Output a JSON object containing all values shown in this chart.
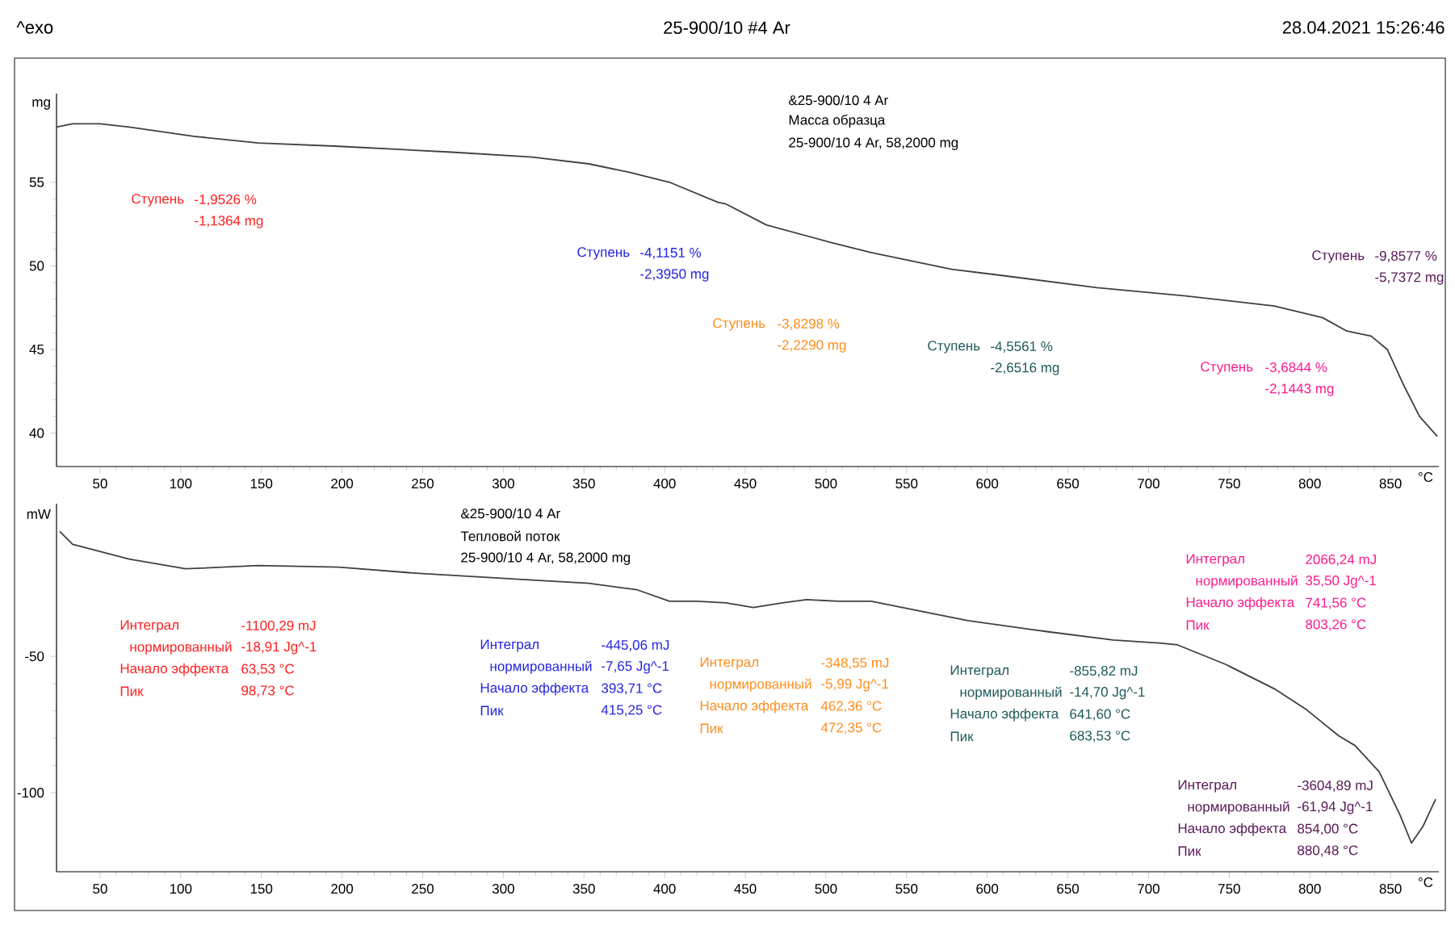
{
  "chart_data": [
    {
      "type": "line",
      "title": "25-900/10 #4 Ar",
      "xlabel": "°C",
      "ylabel": "mg",
      "x": [
        23,
        33,
        50,
        68,
        108,
        148,
        198,
        268,
        318,
        353,
        378,
        403,
        433,
        438,
        463,
        503,
        528,
        578,
        603,
        668,
        723,
        778,
        808,
        823,
        838,
        848,
        858,
        868,
        879
      ],
      "series": [
        {
          "color": "#404040",
          "values": [
            58.3,
            58.5,
            58.5,
            58.3,
            57.75,
            57.35,
            57.15,
            56.8,
            56.5,
            56.1,
            55.6,
            55.0,
            53.8,
            53.7,
            52.45,
            51.4,
            50.8,
            49.8,
            49.5,
            48.7,
            48.2,
            47.6,
            46.9,
            46.1,
            45.8,
            45.0,
            42.9,
            41.0,
            39.8
          ]
        }
      ],
      "xlim": [
        23,
        880
      ],
      "ylim": [
        38,
        60.3
      ],
      "xticks": [
        50,
        100,
        150,
        200,
        250,
        300,
        350,
        400,
        450,
        500,
        550,
        600,
        650,
        700,
        750,
        800,
        850
      ],
      "yticks": [
        40,
        45,
        50,
        55
      ],
      "annotations": [
        "^exo",
        "28.04.2021 15:26:46",
        "&25-900/10   4 Ar",
        "Масса образца",
        "25-900/10     4 Ar, 58,2000 mg",
        "Ступень",
        "-1,9526 %",
        "-1,1364 mg",
        "Ступень",
        "-4,1151 %",
        "-2,3950 mg",
        "Ступень",
        "-3,8298 %",
        "-2,2290 mg",
        "Ступень",
        "-4,5561 %",
        "-2,6516 mg",
        "Ступень",
        "-3,6844 %",
        "-2,1443 mg",
        "Ступень",
        "-9,8577 %",
        "-5,7372 mg"
      ]
    },
    {
      "type": "line",
      "xlabel": "°C",
      "ylabel": "mW",
      "x": [
        25,
        33,
        68,
        103,
        148,
        198,
        248,
        318,
        353,
        383,
        403,
        420,
        438,
        455,
        473,
        488,
        508,
        528,
        588,
        638,
        678,
        708,
        718,
        748,
        778,
        798,
        818,
        828,
        843,
        856,
        863,
        870,
        878
      ],
      "series": [
        {
          "color": "#404040",
          "values": [
            -4.2,
            -8.9,
            -14.3,
            -17.9,
            -16.7,
            -17.3,
            -19.6,
            -22,
            -23.2,
            -25.6,
            -29.8,
            -29.8,
            -30.4,
            -32.1,
            -30.4,
            -29.2,
            -29.8,
            -29.8,
            -36.9,
            -41,
            -44,
            -45.2,
            -45.8,
            -53,
            -61.9,
            -69.6,
            -79.2,
            -82.7,
            -92.3,
            -108.3,
            -118.5,
            -112.5,
            -102.4
          ]
        }
      ],
      "xlim": [
        23,
        880
      ],
      "ylim": [
        -129,
        6
      ],
      "xticks": [
        50,
        100,
        150,
        200,
        250,
        300,
        350,
        400,
        450,
        500,
        550,
        600,
        650,
        700,
        750,
        800,
        850
      ],
      "yticks": [
        -100,
        -50
      ],
      "annotations": [
        "&25-900/10   4 Ar",
        "Тепловой поток",
        "25-900/10     4 Ar, 58,2000 mg",
        "Интеграл",
        "-1100,29 mJ",
        "нормированный",
        "-18,91 Jg^-1",
        "Начало эффекта",
        "63,53 °C",
        "Пик",
        "98,73 °C",
        "Интеграл",
        "-445,06 mJ",
        "нормированный",
        "-7,65 Jg^-1",
        "Начало эффекта",
        "393,71 °C",
        "Пик",
        "415,25 °C",
        "Интеграл",
        "-348,55 mJ",
        "нормированный",
        "-5,99 Jg^-1",
        "Начало эффекта",
        "462,36 °C",
        "Пик",
        "472,35 °C",
        "Интеграл",
        "-855,82 mJ",
        "нормированный",
        "-14,70 Jg^-1",
        "Начало эффекта",
        "641,60 °C",
        "Пик",
        "683,53 °C",
        "Интеграл",
        "2066,24 mJ",
        "нормированный",
        "35,50 Jg^-1",
        "Начало эффекта",
        "741,56 °C",
        "Пик",
        "803,26 °C",
        "Интеграл",
        "-3604,89 mJ",
        "нормированный",
        "-61,94 Jg^-1",
        "Начало эффекта",
        "854,00 °C",
        "Пик",
        "880,48 °C"
      ]
    }
  ]
}
